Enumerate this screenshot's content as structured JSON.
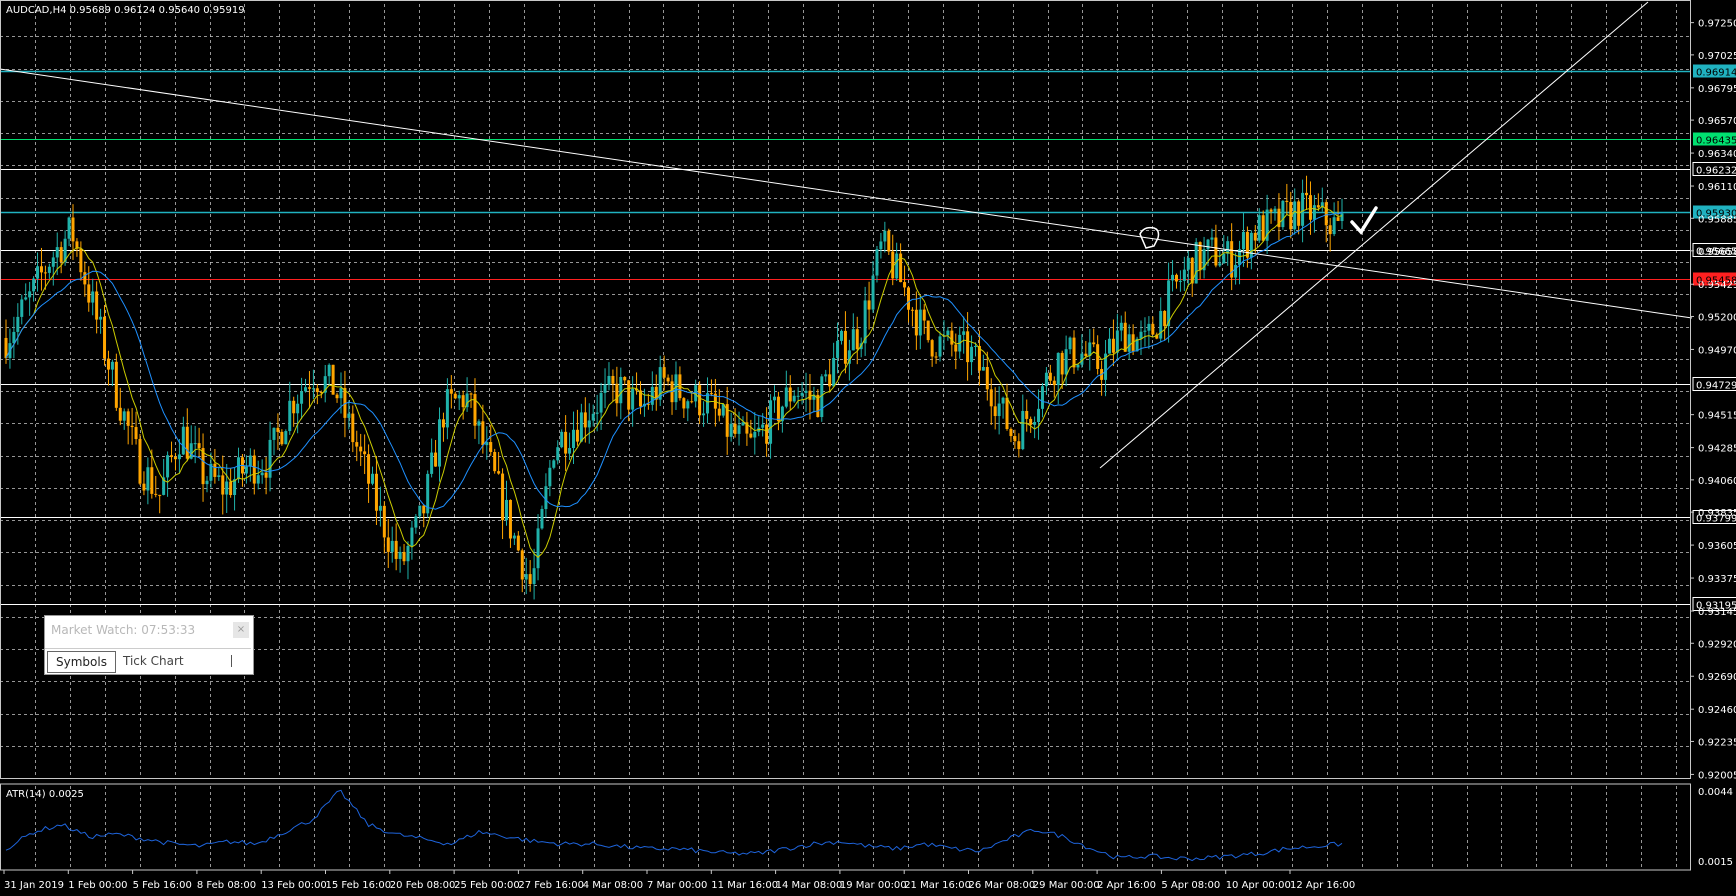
{
  "symbol_header": "AUDCAD,H4  0.95689 0.96124 0.95640 0.95919",
  "atr_header": "ATR(14) 0.0025",
  "market_watch": {
    "title": "Market Watch: 07:53:33",
    "close_glyph": "×",
    "tabs": [
      {
        "label": "Symbols",
        "active": true
      },
      {
        "label": "Tick Chart",
        "active": false
      }
    ]
  },
  "colors": {
    "background": "#000000",
    "grid": "#c8c8c8",
    "bull_candle": "#20b2aa",
    "bear_candle": "#ffa500",
    "ma_fast": "#cccc00",
    "ma_slow": "#1e90ff",
    "atr": "#1e64dc",
    "trendline": "#ffffff",
    "level_cyan": "#20b2c0",
    "level_green": "#00e070",
    "level_red": "#ff2020",
    "level_white": "#ffffff"
  },
  "chart_data": {
    "type": "candlestick",
    "price_axis_labels": [
      "0.97250",
      "0.97025",
      "0.96914",
      "0.96795",
      "0.96570",
      "0.96435",
      "0.96340",
      "0.96232",
      "0.96110",
      "0.95930",
      "0.95885",
      "0.95665",
      "0.95658",
      "0.95425",
      "0.95200",
      "0.94970",
      "0.94729",
      "0.94515",
      "0.94285",
      "0.94060",
      "0.93835",
      "0.93799",
      "0.93605",
      "0.93375",
      "0.93195",
      "0.93145",
      "0.92920",
      "0.92690",
      "0.92460",
      "0.92235",
      "0.92005"
    ],
    "ylim": [
      0.9198,
      0.9738
    ],
    "time_labels": [
      "31 Jan 2019",
      "1 Feb 00:00",
      "5 Feb 16:00",
      "8 Feb 08:00",
      "13 Feb 00:00",
      "15 Feb 16:00",
      "20 Feb 08:00",
      "25 Feb 00:00",
      "27 Feb 16:00",
      "4 Mar 08:00",
      "7 Mar 00:00",
      "11 Mar 16:00",
      "14 Mar 08:00",
      "19 Mar 00:00",
      "21 Mar 16:00",
      "26 Mar 08:00",
      "29 Mar 00:00",
      "2 Apr 16:00",
      "5 Apr 08:00",
      "10 Apr 00:00",
      "12 Apr 16:00"
    ],
    "horizontal_levels": [
      {
        "price": 0.96914,
        "color": "cyan",
        "label": "0.96914"
      },
      {
        "price": 0.96435,
        "color": "green",
        "label": "0.96435"
      },
      {
        "price": 0.96232,
        "color": "white",
        "label": "0.96232"
      },
      {
        "price": 0.9593,
        "color": "cyan",
        "label": "0.95930"
      },
      {
        "price": 0.95665,
        "color": "white",
        "label": "0.95665"
      },
      {
        "price": 0.95458,
        "color": "red",
        "label": "0.95458"
      },
      {
        "price": 0.94729,
        "color": "white",
        "label": "0.94729"
      },
      {
        "price": 0.93799,
        "color": "white",
        "label": "0.93799"
      },
      {
        "price": 0.93195,
        "color": "white",
        "label": "0.93195"
      }
    ],
    "price_path": [
      0.9505,
      0.953,
      0.956,
      0.958,
      0.9525,
      0.947,
      0.942,
      0.9395,
      0.944,
      0.941,
      0.94,
      0.9415,
      0.942,
      0.946,
      0.948,
      0.947,
      0.943,
      0.9385,
      0.9345,
      0.938,
      0.9455,
      0.9465,
      0.942,
      0.9375,
      0.933,
      0.943,
      0.9445,
      0.946,
      0.947,
      0.9455,
      0.9475,
      0.9465,
      0.946,
      0.944,
      0.943,
      0.945,
      0.947,
      0.946,
      0.9495,
      0.951,
      0.957,
      0.954,
      0.9505,
      0.95,
      0.9495,
      0.947,
      0.9435,
      0.946,
      0.949,
      0.9495,
      0.9485,
      0.951,
      0.95,
      0.953,
      0.9555,
      0.9565,
      0.956,
      0.958,
      0.9585,
      0.9595,
      0.959,
      0.958
    ],
    "candle_count": 340,
    "last_close": 0.95919,
    "atr": {
      "period": 14,
      "value": 0.0025,
      "axis_labels": [
        "0.0044",
        "0.0015"
      ],
      "ylim": [
        0.0012,
        0.0046
      ],
      "path": [
        0.002,
        0.0027,
        0.003,
        0.0025,
        0.0026,
        0.0024,
        0.0022,
        0.0021,
        0.0023,
        0.0022,
        0.0027,
        0.0032,
        0.0044,
        0.003,
        0.0026,
        0.0024,
        0.0022,
        0.0027,
        0.0025,
        0.0023,
        0.0022,
        0.0022,
        0.0021,
        0.002,
        0.002,
        0.0019,
        0.0018,
        0.0018,
        0.002,
        0.0022,
        0.0023,
        0.0021,
        0.002,
        0.0022,
        0.002,
        0.0019,
        0.0024,
        0.0028,
        0.0025,
        0.002,
        0.0016,
        0.0017,
        0.0016,
        0.0016,
        0.0017,
        0.0018,
        0.002,
        0.0021,
        0.0022
      ]
    },
    "grid": true
  }
}
